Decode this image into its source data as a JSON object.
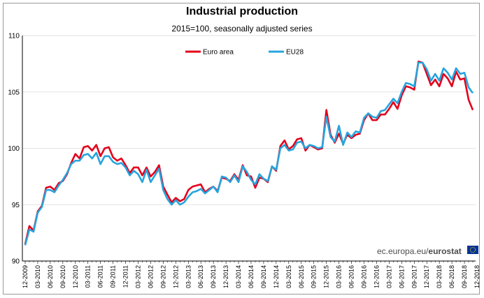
{
  "chart_data": {
    "type": "line",
    "title": "Industrial production",
    "subtitle": "2015=100, seasonally adjusted series",
    "source": "ec.europa.eu/eurostat",
    "source_prefix": "ec.europa.eu/",
    "source_bold": "eurostat",
    "ylim": [
      90,
      110
    ],
    "yticks": [
      "90",
      "95",
      "100",
      "105",
      "110"
    ],
    "grid": true,
    "legend_position": "top-center",
    "x_start": "12-2009",
    "x_end": "12-2018",
    "xticks": [
      "12-2009",
      "03-2010",
      "06-2010",
      "09-2010",
      "12-2010",
      "03-2011",
      "06-2011",
      "09-2011",
      "12-2011",
      "03-2012",
      "06-2012",
      "09-2012",
      "12-2012",
      "03-2013",
      "06-2013",
      "09-2013",
      "12-2013",
      "03-2014",
      "06-2014",
      "09-2014",
      "12-2014",
      "03-2015",
      "06-2015",
      "09-2015",
      "12-2015",
      "03-2016",
      "06-2016",
      "09-2016",
      "12-2016",
      "03-2017",
      "06-2017",
      "09-2017",
      "12-2017",
      "03-2018",
      "06-2018",
      "09-2018",
      "12-2018"
    ],
    "series": [
      {
        "name": "Euro area",
        "color": "#e3001b",
        "values": [
          91.5,
          93.1,
          92.7,
          94.4,
          94.9,
          96.5,
          96.6,
          96.3,
          96.9,
          97.1,
          97.7,
          98.7,
          99.5,
          99.1,
          100.1,
          100.2,
          99.8,
          100.3,
          99.3,
          100.0,
          100.1,
          99.2,
          98.9,
          99.1,
          98.5,
          97.8,
          98.3,
          98.3,
          97.6,
          98.3,
          97.5,
          97.9,
          98.5,
          96.6,
          95.9,
          95.2,
          95.6,
          95.3,
          95.5,
          96.3,
          96.6,
          96.7,
          96.8,
          96.1,
          96.4,
          96.6,
          96.2,
          97.4,
          97.3,
          97.1,
          97.7,
          97.2,
          98.5,
          97.6,
          97.5,
          96.5,
          97.4,
          97.3,
          97.0,
          98.4,
          98.0,
          100.2,
          100.7,
          99.9,
          100.2,
          100.8,
          100.9,
          99.8,
          100.3,
          100.1,
          99.9,
          100.0,
          103.4,
          101.2,
          100.5,
          101.3,
          100.4,
          101.2,
          100.9,
          101.2,
          101.3,
          102.5,
          103.1,
          102.5,
          102.5,
          103.0,
          103.0,
          103.5,
          104.1,
          103.5,
          104.7,
          105.5,
          105.4,
          105.2,
          107.7,
          107.6,
          106.6,
          105.6,
          106.1,
          105.5,
          106.6,
          106.2,
          105.5,
          106.8,
          106.1,
          106.2,
          104.3,
          103.4
        ]
      },
      {
        "name": "EU28",
        "color": "#27a4dd",
        "values": [
          91.4,
          92.8,
          92.6,
          94.3,
          94.8,
          96.3,
          96.3,
          96.1,
          96.7,
          97.2,
          97.8,
          98.6,
          98.9,
          98.9,
          99.4,
          99.5,
          99.1,
          99.6,
          98.6,
          99.3,
          99.3,
          98.8,
          98.6,
          98.7,
          98.3,
          97.6,
          98.0,
          97.7,
          97.0,
          98.1,
          97.0,
          97.6,
          98.2,
          96.3,
          95.5,
          95.0,
          95.4,
          95.0,
          95.2,
          95.7,
          96.1,
          96.2,
          96.4,
          96.0,
          96.3,
          96.6,
          96.1,
          97.5,
          97.4,
          97.0,
          97.6,
          97.0,
          98.4,
          97.9,
          97.2,
          96.8,
          97.7,
          97.3,
          97.1,
          98.4,
          98.1,
          100.0,
          100.3,
          99.8,
          99.9,
          100.5,
          100.6,
          100.0,
          100.3,
          100.2,
          100.0,
          100.1,
          102.8,
          101.0,
          100.6,
          102.0,
          100.3,
          101.4,
          101.0,
          101.5,
          101.4,
          102.7,
          103.1,
          102.8,
          102.7,
          103.3,
          103.4,
          103.9,
          104.4,
          104.0,
          105.0,
          105.8,
          105.7,
          105.5,
          107.6,
          107.6,
          107.0,
          106.0,
          106.6,
          106.0,
          107.1,
          106.7,
          106.1,
          107.1,
          106.6,
          106.7,
          105.4,
          104.9
        ]
      }
    ]
  }
}
